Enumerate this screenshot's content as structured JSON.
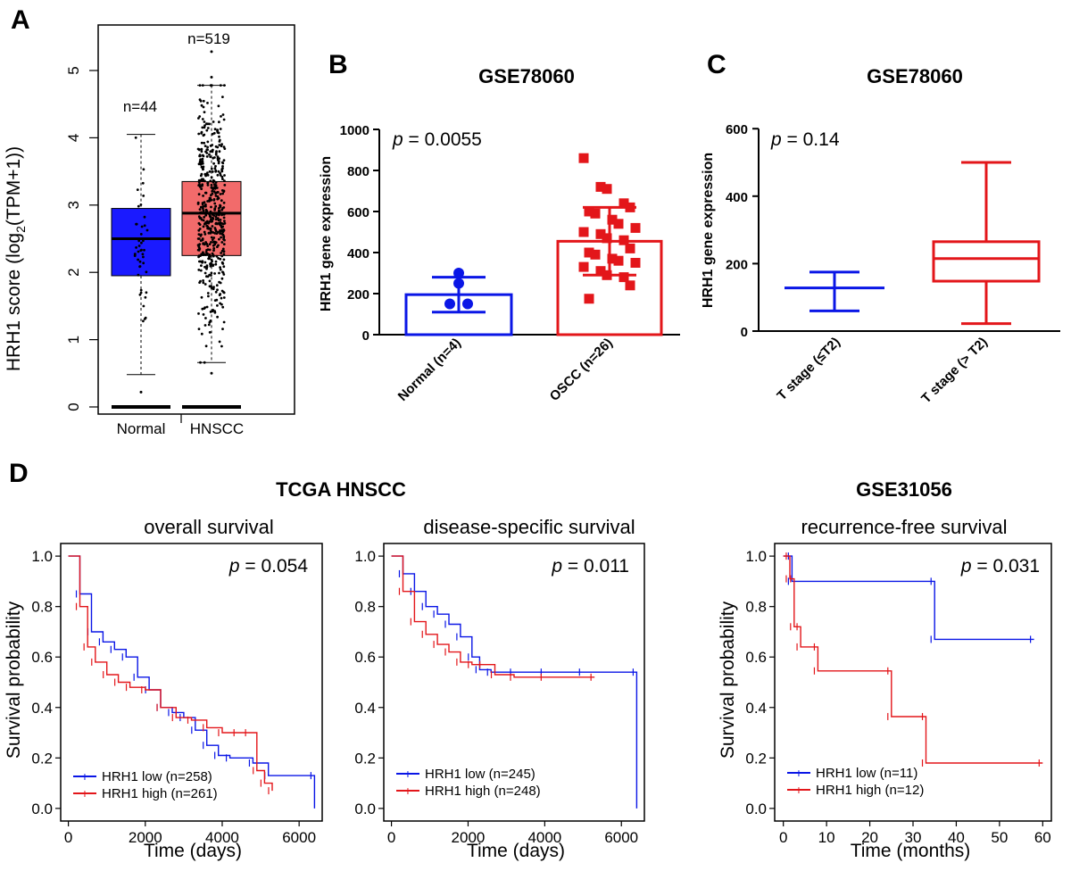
{
  "panel_letters": [
    "A",
    "B",
    "C",
    "D"
  ],
  "colors": {
    "blue": "#0a16e6",
    "red": "#e3161a",
    "normal_box": "#1a1aff",
    "hnscc_box": "#f26b6b"
  },
  "chart_data": [
    {
      "id": "A",
      "type": "box",
      "ylabel": "HRH1 score (log",
      "ylabel_sub": "2",
      "ylabel_tail": "(TPM+1))",
      "categories": [
        "Normal",
        "HNSCC"
      ],
      "n_labels": [
        "n=44",
        "n=519"
      ],
      "yticks": [
        "0",
        "1",
        "2",
        "3",
        "4",
        "5"
      ],
      "ylim": [
        0,
        5.35
      ],
      "boxes": [
        {
          "name": "Normal",
          "q1": 1.95,
          "median": 2.5,
          "q3": 2.95,
          "whisker_low": 0.48,
          "whisker_high": 4.05,
          "outliers": [
            0.22,
            0,
            0
          ]
        },
        {
          "name": "HNSCC",
          "q1": 2.25,
          "median": 2.88,
          "q3": 3.35,
          "whisker_low": 0.66,
          "whisker_high": 4.78,
          "outliers": [
            5.28,
            4.9,
            0.5,
            0
          ]
        }
      ]
    },
    {
      "id": "B",
      "type": "bar",
      "title": "GSE78060",
      "ylabel": "HRH1 gene expression",
      "categories": [
        "Normal (n=4)",
        "OSCC (n=26)"
      ],
      "values": [
        195,
        455
      ],
      "sd": [
        85,
        165
      ],
      "ylim": [
        0,
        1000
      ],
      "yticks": [
        "0",
        "200",
        "400",
        "600",
        "800",
        "1000"
      ],
      "p_label": "p",
      "p_value": " = 0.0055",
      "points": [
        [
          300,
          250,
          150,
          150
        ],
        [
          860,
          720,
          710,
          640,
          620,
          600,
          590,
          560,
          540,
          520,
          500,
          490,
          470,
          460,
          420,
          400,
          390,
          370,
          360,
          350,
          330,
          310,
          290,
          280,
          240,
          175
        ]
      ]
    },
    {
      "id": "C",
      "type": "box",
      "title": "GSE78060",
      "ylabel": "HRH1 gene expression",
      "categories": [
        "T stage (≤T2)",
        "T stage (> T2)"
      ],
      "ylim": [
        0,
        600
      ],
      "yticks": [
        "0",
        "200",
        "400",
        "600"
      ],
      "p_label": "p",
      "p_value": " = 0.14",
      "boxes": [
        {
          "name": "T stage (≤T2)",
          "min": 60,
          "median": 128,
          "max": 175
        },
        {
          "name": "T stage (> T2)",
          "min": 22,
          "q1": 148,
          "median": 215,
          "q3": 265,
          "max": 500
        }
      ]
    },
    {
      "id": "D1",
      "type": "line",
      "group_title": "TCGA HNSCC",
      "title": "overall survival",
      "xlabel": "Time (days)",
      "ylabel": "Survival probability",
      "xlim": [
        -200,
        6600
      ],
      "ylim": [
        -0.05,
        1.05
      ],
      "xticks": [
        "0",
        "2000",
        "4000",
        "6000"
      ],
      "yticks": [
        "0.0",
        "0.2",
        "0.4",
        "0.6",
        "0.8",
        "1.0"
      ],
      "p_label": "p",
      "p_value": " = 0.054",
      "series": [
        {
          "name": "HRH1 low (n=258)",
          "color": "blue",
          "x": [
            0,
            300,
            600,
            900,
            1200,
            1500,
            1800,
            2100,
            2400,
            2700,
            3000,
            3300,
            3600,
            3900,
            4200,
            4800,
            5200,
            6400,
            6400
          ],
          "y": [
            1.0,
            0.85,
            0.7,
            0.66,
            0.63,
            0.6,
            0.52,
            0.47,
            0.4,
            0.38,
            0.36,
            0.31,
            0.25,
            0.21,
            0.2,
            0.18,
            0.13,
            0.13,
            0.0
          ]
        },
        {
          "name": "HRH1 high (n=261)",
          "color": "red",
          "x": [
            0,
            300,
            500,
            700,
            1000,
            1300,
            1600,
            2000,
            2400,
            2800,
            3200,
            3600,
            4000,
            4400,
            4700,
            4900,
            5100,
            5300
          ],
          "y": [
            1.0,
            0.8,
            0.64,
            0.58,
            0.53,
            0.5,
            0.48,
            0.47,
            0.4,
            0.36,
            0.35,
            0.32,
            0.3,
            0.3,
            0.3,
            0.15,
            0.1,
            0.07
          ]
        }
      ]
    },
    {
      "id": "D2",
      "type": "line",
      "title": "disease-specific survival",
      "xlabel": "Time (days)",
      "xlim": [
        -200,
        6600
      ],
      "ylim": [
        -0.05,
        1.05
      ],
      "xticks": [
        "0",
        "2000",
        "4000",
        "6000"
      ],
      "yticks": [
        "0.0",
        "0.2",
        "0.4",
        "0.6",
        "0.8",
        "1.0"
      ],
      "p_label": "p",
      "p_value": " = 0.011",
      "series": [
        {
          "name": "HRH1 low (n=245)",
          "color": "blue",
          "x": [
            0,
            300,
            600,
            900,
            1200,
            1500,
            1800,
            2100,
            2300,
            2600,
            3200,
            4000,
            5000,
            6400,
            6400
          ],
          "y": [
            1.0,
            0.93,
            0.86,
            0.8,
            0.77,
            0.73,
            0.68,
            0.6,
            0.55,
            0.54,
            0.54,
            0.54,
            0.54,
            0.54,
            0.0
          ]
        },
        {
          "name": "HRH1 high (n=248)",
          "color": "red",
          "x": [
            0,
            300,
            600,
            900,
            1200,
            1500,
            1800,
            2100,
            2400,
            2700,
            3200,
            4000,
            5300
          ],
          "y": [
            1.0,
            0.86,
            0.74,
            0.69,
            0.65,
            0.62,
            0.58,
            0.57,
            0.57,
            0.53,
            0.52,
            0.52,
            0.52
          ]
        }
      ]
    },
    {
      "id": "D3",
      "type": "line",
      "group_title": "GSE31056",
      "title": "recurrence-free survival",
      "xlabel": "Time (months)",
      "ylabel": "Survival probability",
      "xlim": [
        -2,
        62
      ],
      "ylim": [
        -0.05,
        1.05
      ],
      "xticks": [
        "0",
        "10",
        "20",
        "30",
        "40",
        "50",
        "60"
      ],
      "yticks": [
        "0.0",
        "0.2",
        "0.4",
        "0.6",
        "0.8",
        "1.0"
      ],
      "p_label": "p",
      "p_value": " = 0.031",
      "series": [
        {
          "name": "HRH1 low (n=11)",
          "color": "blue",
          "x": [
            0,
            2,
            2,
            35,
            35,
            58
          ],
          "y": [
            1.0,
            1.0,
            0.9,
            0.9,
            0.67,
            0.67
          ]
        },
        {
          "name": "HRH1 high (n=12)",
          "color": "red",
          "x": [
            0,
            1.5,
            1.5,
            2.5,
            2.5,
            4,
            4,
            8,
            8,
            25,
            25,
            33,
            33,
            60
          ],
          "y": [
            1.0,
            1.0,
            0.91,
            0.91,
            0.72,
            0.72,
            0.64,
            0.64,
            0.545,
            0.545,
            0.364,
            0.364,
            0.18,
            0.18
          ]
        }
      ]
    }
  ]
}
